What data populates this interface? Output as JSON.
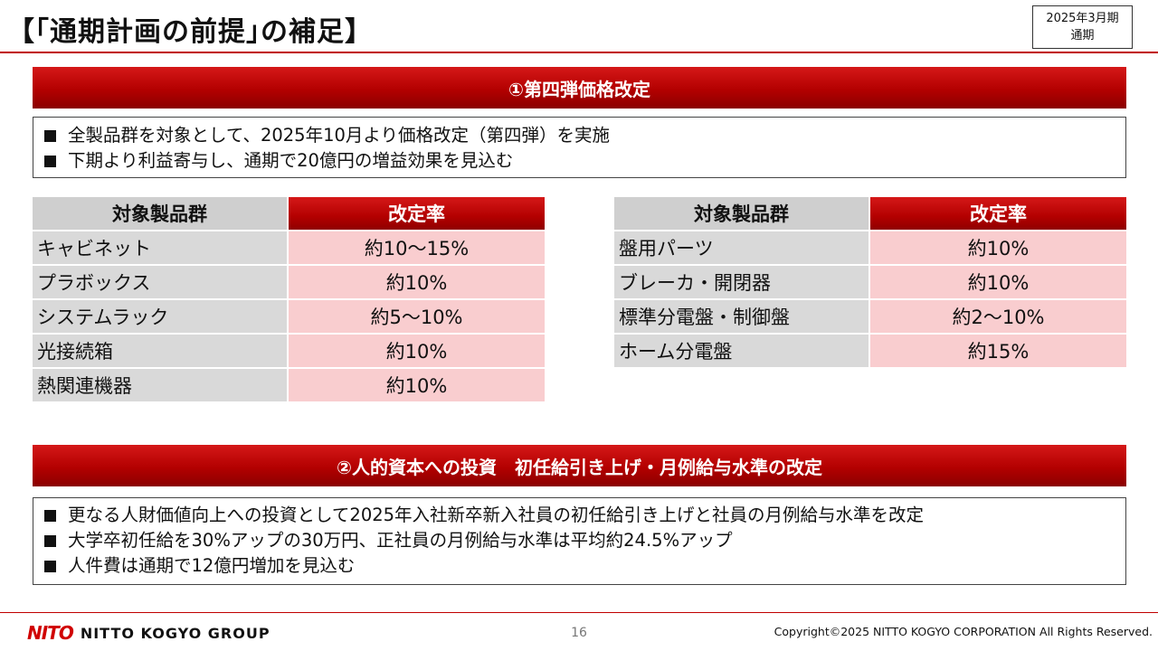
{
  "header": {
    "title": "【｢通期計画の前提｣の補足】",
    "period_line1": "2025年3月期",
    "period_line2": "通期"
  },
  "section1": {
    "heading": "①第四弾価格改定",
    "bullets": [
      "全製品群を対象として、2025年10月より価格改定（第四弾）を実施",
      "下期より利益寄与し、通期で20億円の増益効果を見込む"
    ],
    "table_left": {
      "header_name": "対象製品群",
      "header_rate": "改定率",
      "rows": [
        {
          "name": "キャビネット",
          "rate": "約10～15%"
        },
        {
          "name": "プラボックス",
          "rate": "約10%"
        },
        {
          "name": "システムラック",
          "rate": "約5～10%"
        },
        {
          "name": "光接続箱",
          "rate": "約10%"
        },
        {
          "name": "熱関連機器",
          "rate": "約10%"
        }
      ]
    },
    "table_right": {
      "header_name": "対象製品群",
      "header_rate": "改定率",
      "rows": [
        {
          "name": "盤用パーツ",
          "rate": "約10%"
        },
        {
          "name": "ブレーカ・開閉器",
          "rate": "約10%"
        },
        {
          "name": "標準分電盤・制御盤",
          "rate": "約2～10%"
        },
        {
          "name": "ホーム分電盤",
          "rate": "約15%"
        }
      ]
    }
  },
  "section2": {
    "heading": "②人的資本への投資　初任給引き上げ・月例給与水準の改定",
    "bullets": [
      "更なる人財価値向上への投資として2025年入社新卒新入社員の初任給引き上げと社員の月例給与水準を改定",
      "大学卒初任給を30%アップの30万円、正社員の月例給与水準は平均約24.5%アップ",
      "人件費は通期で12億円増加を見込む"
    ]
  },
  "footer": {
    "logo_mark": "NITO",
    "logo_text": "NITTO KOGYO GROUP",
    "page_number": "16",
    "copyright": "Copyright©2025 NITTO KOGYO CORPORATION All Rights Reserved."
  },
  "colors": {
    "accent_red": "#c00000",
    "rate_cell_pink": "#f9cdcf",
    "name_cell_gray": "#d9d9d9"
  }
}
